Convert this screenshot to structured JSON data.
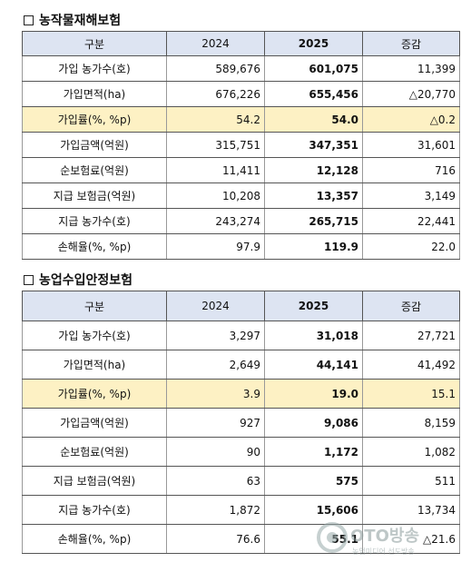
{
  "sections": [
    {
      "title": "농작물재해보험",
      "headers": [
        "구분",
        "2024",
        "2025",
        "증감"
      ],
      "rows": [
        {
          "label": "가입 농가수(호)",
          "y2024": "589,676",
          "y2025": "601,075",
          "diff": "11,399"
        },
        {
          "label": "가입면적(ha)",
          "y2024": "676,226",
          "y2025": "655,456",
          "diff": "△20,770"
        },
        {
          "label": "가입률(%, %p)",
          "y2024": "54.2",
          "y2025": "54.0",
          "diff": "△0.2"
        },
        {
          "label": "가입금액(억원)",
          "y2024": "315,751",
          "y2025": "347,351",
          "diff": "31,601"
        },
        {
          "label": "순보험료(억원)",
          "y2024": "11,411",
          "y2025": "12,128",
          "diff": "716"
        },
        {
          "label": "지급 보험금(억원)",
          "y2024": "10,208",
          "y2025": "13,357",
          "diff": "3,149"
        },
        {
          "label": "지급 농가수(호)",
          "y2024": "243,274",
          "y2025": "265,715",
          "diff": "22,441"
        },
        {
          "label": "손해율(%, %p)",
          "y2024": "97.9",
          "y2025": "119.9",
          "diff": "22.0"
        }
      ]
    },
    {
      "title": "농업수입안정보험",
      "headers": [
        "구분",
        "2024",
        "2025",
        "증감"
      ],
      "rows": [
        {
          "label": "가입 농가수(호)",
          "y2024": "3,297",
          "y2025": "31,018",
          "diff": "27,721"
        },
        {
          "label": "가입면적(ha)",
          "y2024": "2,649",
          "y2025": "44,141",
          "diff": "41,492"
        },
        {
          "label": "가입률(%, %p)",
          "y2024": "3.9",
          "y2025": "19.0",
          "diff": "15.1"
        },
        {
          "label": "가입금액(억원)",
          "y2024": "927",
          "y2025": "9,086",
          "diff": "8,159"
        },
        {
          "label": "순보험료(억원)",
          "y2024": "90",
          "y2025": "1,172",
          "diff": "1,082"
        },
        {
          "label": "지급 보험금(억원)",
          "y2024": "63",
          "y2025": "575",
          "diff": "511"
        },
        {
          "label": "지급 농가수(호)",
          "y2024": "1,872",
          "y2025": "15,606",
          "diff": "13,734"
        },
        {
          "label": "손해율(%, %p)",
          "y2024": "76.6",
          "y2025": "55.1",
          "diff": "△21.6"
        }
      ]
    }
  ],
  "highlight_row_index": 2,
  "highlight_color": "#fdf1c4",
  "header_color": "#dde4f2",
  "watermark": {
    "text": "OTO방송",
    "subtext": "농업미디어 선도방송",
    "icon": "broadcast-logo-icon"
  }
}
